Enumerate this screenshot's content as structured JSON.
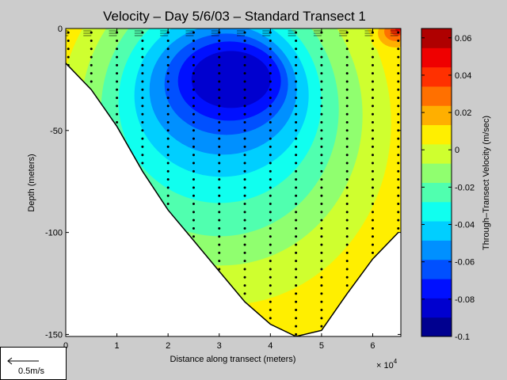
{
  "chart_data": {
    "type": "heatmap",
    "title": "Velocity – Day 5/6/03 – Standard Transect 1",
    "xlabel": "Distance along transect (meters)",
    "ylabel": "Depth (meters)",
    "x_multiplier": "× 10",
    "x_multiplier_exp": "4",
    "xlim": [
      0,
      65500
    ],
    "ylim": [
      -151,
      0
    ],
    "x_ticks": [
      {
        "value": 0,
        "label": "0"
      },
      {
        "value": 10000,
        "label": "1"
      },
      {
        "value": 20000,
        "label": "2"
      },
      {
        "value": 30000,
        "label": "3"
      },
      {
        "value": 40000,
        "label": "4"
      },
      {
        "value": 50000,
        "label": "5"
      },
      {
        "value": 60000,
        "label": "6"
      }
    ],
    "y_ticks": [
      {
        "value": 0,
        "label": "0"
      },
      {
        "value": -50,
        "label": "-50"
      },
      {
        "value": -100,
        "label": "-100"
      },
      {
        "value": -150,
        "label": "-150"
      }
    ],
    "bottom_profile": [
      {
        "x": 0,
        "depth": -17
      },
      {
        "x": 5000,
        "depth": -30
      },
      {
        "x": 10000,
        "depth": -48
      },
      {
        "x": 15000,
        "depth": -70
      },
      {
        "x": 20000,
        "depth": -89
      },
      {
        "x": 25000,
        "depth": -104
      },
      {
        "x": 30000,
        "depth": -119
      },
      {
        "x": 35000,
        "depth": -134
      },
      {
        "x": 40000,
        "depth": -145
      },
      {
        "x": 45000,
        "depth": -151
      },
      {
        "x": 50000,
        "depth": -148
      },
      {
        "x": 55000,
        "depth": -130
      },
      {
        "x": 60000,
        "depth": -113
      },
      {
        "x": 65000,
        "depth": -100
      }
    ],
    "station_x": [
      500,
      5000,
      10000,
      15000,
      20000,
      25000,
      30000,
      35000,
      40000,
      45000,
      50000,
      55000,
      60000,
      65000
    ],
    "velocity_core": {
      "x": 32000,
      "depth": -25,
      "value": -0.095
    },
    "colorbar": {
      "label": "Through–Transect Velocity (m/sec)",
      "range": [
        -0.1,
        0.065
      ],
      "ticks": [
        {
          "value": 0.06,
          "label": "0.06"
        },
        {
          "value": 0.04,
          "label": "0.04"
        },
        {
          "value": 0.02,
          "label": "0.02"
        },
        {
          "value": 0,
          "label": "0"
        },
        {
          "value": -0.02,
          "label": "-0.02"
        },
        {
          "value": -0.04,
          "label": "-0.04"
        },
        {
          "value": -0.06,
          "label": "-0.06"
        },
        {
          "value": -0.08,
          "label": "-0.08"
        },
        {
          "value": -0.1,
          "label": "-0.1"
        }
      ],
      "colors": [
        "#00008f",
        "#0000cf",
        "#0010ff",
        "#0050ff",
        "#0090ff",
        "#00cfff",
        "#10ffef",
        "#50ffaf",
        "#90ff6f",
        "#cfff2f",
        "#ffef00",
        "#ffaf00",
        "#ff7000",
        "#ff3000",
        "#ef0000",
        "#af0000"
      ]
    },
    "scale_arrow_label": "0.5m/s"
  }
}
